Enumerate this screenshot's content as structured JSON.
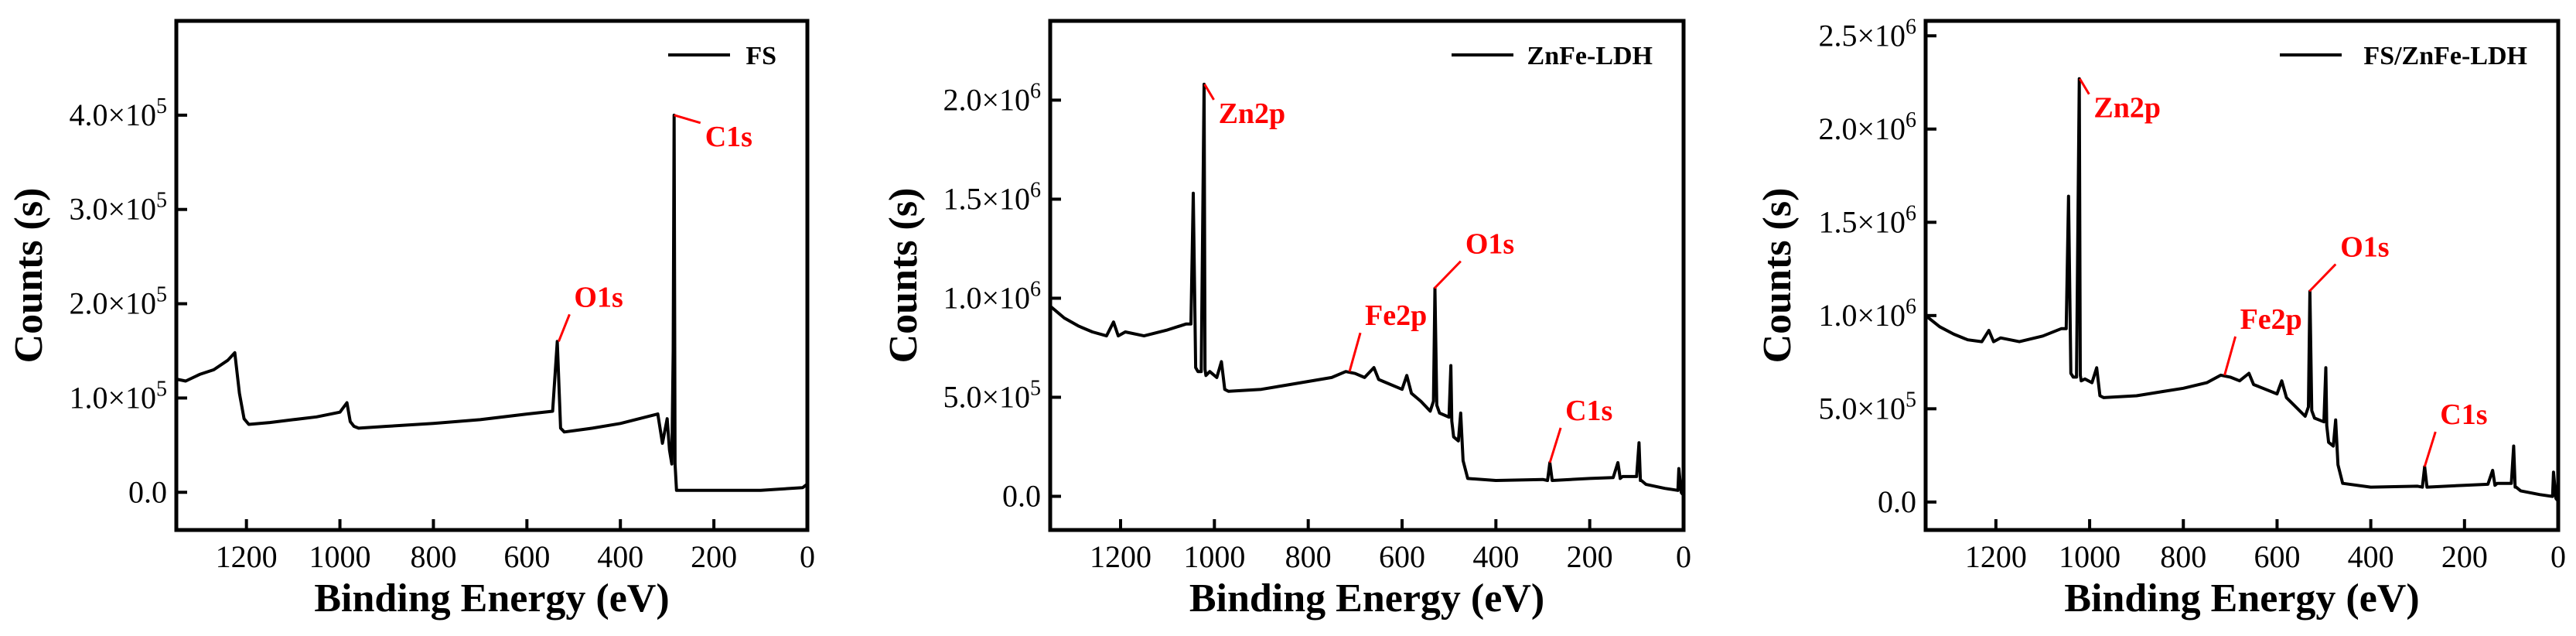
{
  "colors": {
    "line": "#000000",
    "annotation": "#ff0000"
  },
  "chart_data": [
    {
      "type": "line",
      "legend": "FS",
      "xlabel": "Binding Energy (eV)",
      "ylabel": "Counts (s)",
      "xlim": [
        1350,
        0
      ],
      "ylim": [
        -40000,
        500000
      ],
      "x_ticks": [
        1200,
        1000,
        800,
        600,
        400,
        200,
        0
      ],
      "x_tick_labels": [
        "1200",
        "1000",
        "800",
        "600",
        "400",
        "200",
        "0"
      ],
      "y_ticks": [
        0,
        100000,
        200000,
        300000,
        400000
      ],
      "y_tick_labels": [
        {
          "mantissa": "0.0",
          "exp": ""
        },
        {
          "mantissa": "1.0×10",
          "exp": "5"
        },
        {
          "mantissa": "2.0×10",
          "exp": "5"
        },
        {
          "mantissa": "3.0×10",
          "exp": "5"
        },
        {
          "mantissa": "4.0×10",
          "exp": "5"
        }
      ],
      "series": [
        {
          "name": "FS",
          "x": [
            1350,
            1330,
            1300,
            1270,
            1240,
            1225,
            1215,
            1205,
            1195,
            1150,
            1100,
            1050,
            1000,
            985,
            978,
            970,
            960,
            900,
            800,
            700,
            600,
            545,
            535,
            528,
            520,
            460,
            400,
            320,
            310,
            300,
            295,
            290,
            287,
            285,
            283,
            280,
            200,
            100,
            10,
            2
          ],
          "y": [
            120000,
            118000,
            125000,
            130000,
            140000,
            148000,
            105000,
            78000,
            72000,
            74000,
            77000,
            80000,
            85000,
            95000,
            75000,
            70000,
            68000,
            70000,
            73000,
            77000,
            83000,
            86000,
            160000,
            68000,
            64000,
            68000,
            73000,
            83000,
            52000,
            78000,
            45000,
            30000,
            150000,
            400000,
            30000,
            2000,
            2000,
            2000,
            5000,
            8000
          ]
        }
      ],
      "annotations": [
        {
          "label": "C1s",
          "x": 285,
          "y": 400000
        },
        {
          "label": "O1s",
          "x": 532,
          "y": 160000
        }
      ]
    },
    {
      "type": "line",
      "legend": "ZnFe-LDH",
      "xlabel": "Binding Energy (eV)",
      "ylabel": "Counts (s)",
      "xlim": [
        1350,
        0
      ],
      "ylim": [
        -170000,
        2400000
      ],
      "x_ticks": [
        1200,
        1000,
        800,
        600,
        400,
        200,
        0
      ],
      "x_tick_labels": [
        "1200",
        "1000",
        "800",
        "600",
        "400",
        "200",
        "0"
      ],
      "y_ticks": [
        0,
        500000,
        1000000,
        1500000,
        2000000
      ],
      "y_tick_labels": [
        {
          "mantissa": "0.0",
          "exp": ""
        },
        {
          "mantissa": "5.0×10",
          "exp": "5"
        },
        {
          "mantissa": "1.0×10",
          "exp": "6"
        },
        {
          "mantissa": "1.5×10",
          "exp": "6"
        },
        {
          "mantissa": "2.0×10",
          "exp": "6"
        }
      ],
      "series": [
        {
          "name": "ZnFe-LDH",
          "x": [
            1350,
            1320,
            1290,
            1260,
            1230,
            1215,
            1205,
            1190,
            1150,
            1100,
            1060,
            1050,
            1045,
            1040,
            1035,
            1028,
            1022,
            1020,
            1018,
            1010,
            995,
            985,
            978,
            970,
            900,
            850,
            800,
            750,
            720,
            700,
            680,
            660,
            650,
            640,
            600,
            590,
            580,
            560,
            540,
            533,
            530,
            526,
            520,
            510,
            500,
            496,
            494,
            490,
            480,
            475,
            470,
            460,
            400,
            300,
            290,
            285,
            280,
            200,
            150,
            140,
            135,
            130,
            100,
            95,
            92,
            90,
            80,
            40,
            12,
            10,
            5,
            2
          ],
          "y": [
            960000,
            900000,
            860000,
            830000,
            810000,
            880000,
            810000,
            830000,
            810000,
            840000,
            870000,
            870000,
            1530000,
            650000,
            630000,
            630000,
            2080000,
            640000,
            610000,
            630000,
            600000,
            680000,
            540000,
            530000,
            540000,
            560000,
            580000,
            600000,
            630000,
            620000,
            600000,
            650000,
            590000,
            580000,
            540000,
            610000,
            520000,
            480000,
            430000,
            480000,
            1050000,
            460000,
            420000,
            410000,
            400000,
            660000,
            380000,
            300000,
            280000,
            420000,
            180000,
            90000,
            80000,
            85000,
            80000,
            170000,
            80000,
            90000,
            95000,
            170000,
            90000,
            100000,
            100000,
            270000,
            80000,
            80000,
            60000,
            40000,
            30000,
            140000,
            20000,
            10000
          ]
        }
      ],
      "annotations": [
        {
          "label": "Zn2p",
          "x": 1021,
          "y": 2080000
        },
        {
          "label": "O1s",
          "x": 531,
          "y": 1050000
        },
        {
          "label": "Fe2p",
          "x": 712,
          "y": 630000
        },
        {
          "label": "C1s",
          "x": 285,
          "y": 170000
        }
      ]
    },
    {
      "type": "line",
      "legend": "FS/ZnFe-LDH",
      "xlabel": "Binding Energy (eV)",
      "ylabel": "Counts (s)",
      "xlim": [
        1350,
        0
      ],
      "ylim": [
        -150000,
        2580000
      ],
      "x_ticks": [
        1200,
        1000,
        800,
        600,
        400,
        200,
        0
      ],
      "x_tick_labels": [
        "1200",
        "1000",
        "800",
        "600",
        "400",
        "200",
        "0"
      ],
      "y_ticks": [
        0,
        500000,
        1000000,
        1500000,
        2000000,
        2500000
      ],
      "y_tick_labels": [
        {
          "mantissa": "0.0",
          "exp": ""
        },
        {
          "mantissa": "5.0×10",
          "exp": "5"
        },
        {
          "mantissa": "1.0×10",
          "exp": "6"
        },
        {
          "mantissa": "1.5×10",
          "exp": "6"
        },
        {
          "mantissa": "2.0×10",
          "exp": "6"
        },
        {
          "mantissa": "2.5×10",
          "exp": "6"
        }
      ],
      "series": [
        {
          "name": "FS/ZnFe-LDH",
          "x": [
            1350,
            1320,
            1290,
            1260,
            1230,
            1215,
            1205,
            1190,
            1150,
            1100,
            1060,
            1050,
            1045,
            1040,
            1035,
            1028,
            1022,
            1020,
            1018,
            1010,
            995,
            985,
            978,
            970,
            900,
            850,
            800,
            750,
            720,
            700,
            680,
            660,
            650,
            640,
            600,
            590,
            580,
            560,
            540,
            533,
            530,
            526,
            520,
            510,
            500,
            496,
            494,
            490,
            480,
            475,
            470,
            460,
            400,
            300,
            290,
            285,
            280,
            200,
            150,
            140,
            135,
            130,
            100,
            95,
            92,
            90,
            80,
            40,
            12,
            10,
            5,
            2
          ],
          "y": [
            1000000,
            940000,
            900000,
            870000,
            860000,
            920000,
            860000,
            880000,
            860000,
            890000,
            930000,
            930000,
            1640000,
            690000,
            670000,
            670000,
            2270000,
            680000,
            650000,
            660000,
            640000,
            720000,
            570000,
            560000,
            570000,
            590000,
            610000,
            640000,
            680000,
            670000,
            650000,
            690000,
            630000,
            620000,
            580000,
            650000,
            560000,
            510000,
            460000,
            510000,
            1130000,
            490000,
            450000,
            440000,
            430000,
            720000,
            410000,
            320000,
            300000,
            440000,
            200000,
            100000,
            80000,
            85000,
            80000,
            190000,
            80000,
            90000,
            95000,
            170000,
            90000,
            100000,
            100000,
            300000,
            80000,
            80000,
            60000,
            40000,
            30000,
            160000,
            20000,
            10000
          ]
        }
      ],
      "annotations": [
        {
          "label": "Zn2p",
          "x": 1021,
          "y": 2270000
        },
        {
          "label": "O1s",
          "x": 531,
          "y": 1130000
        },
        {
          "label": "Fe2p",
          "x": 712,
          "y": 680000
        },
        {
          "label": "C1s",
          "x": 285,
          "y": 190000
        }
      ]
    }
  ]
}
